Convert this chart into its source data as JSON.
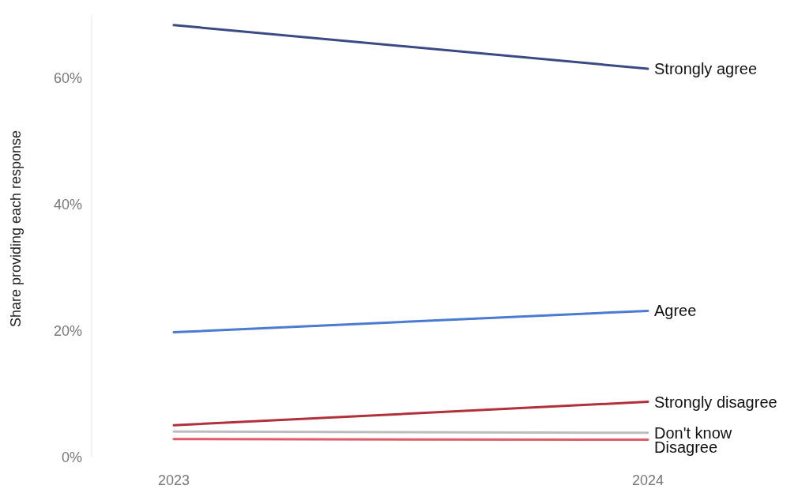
{
  "chart_data": {
    "type": "line",
    "ylabel": "Share providing each response",
    "categories": [
      "2023",
      "2024"
    ],
    "ylim": [
      0,
      70
    ],
    "yticks": [
      {
        "value": 0,
        "label": "0%"
      },
      {
        "value": 20,
        "label": "20%"
      },
      {
        "value": 40,
        "label": "40%"
      },
      {
        "value": 60,
        "label": "60%"
      }
    ],
    "grid": false,
    "legend": false,
    "marker": "none",
    "series": [
      {
        "name": "Strongly agree",
        "color": "#3a4a84",
        "values": [
          68.4,
          61.5
        ]
      },
      {
        "name": "Agree",
        "color": "#4a7bd0",
        "values": [
          19.8,
          23.2
        ]
      },
      {
        "name": "Strongly disagree",
        "color": "#b0313a",
        "values": [
          5.1,
          8.8
        ]
      },
      {
        "name": "Don't know",
        "color": "#bdbdbd",
        "values": [
          4.1,
          3.9
        ]
      },
      {
        "name": "Disagree",
        "color": "#e05a68",
        "values": [
          2.9,
          2.8
        ]
      }
    ]
  }
}
